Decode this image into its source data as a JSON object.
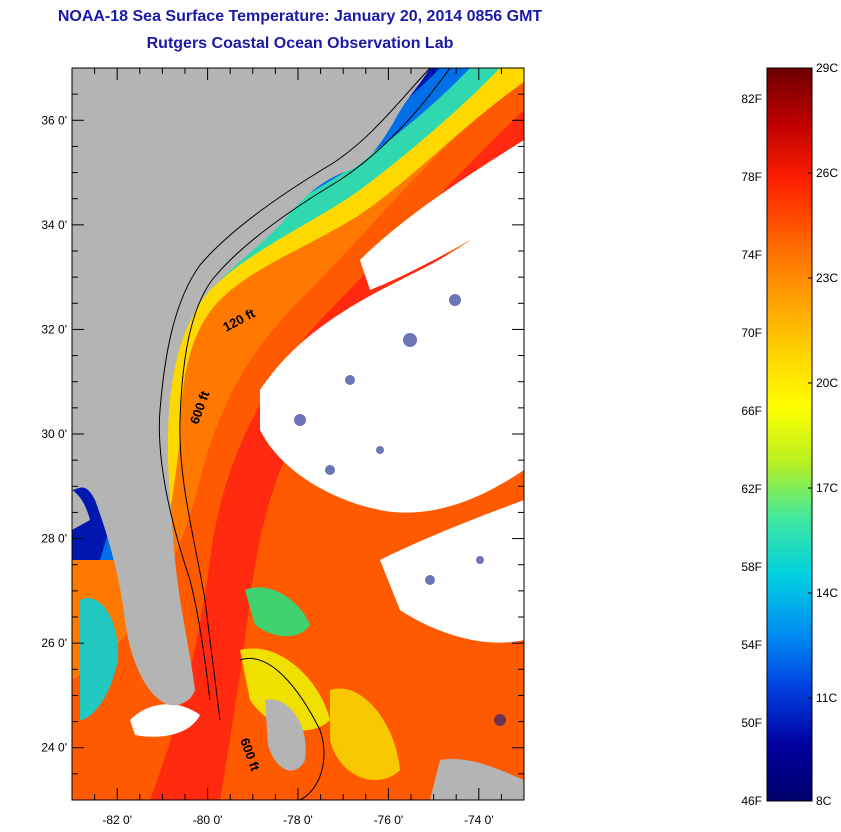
{
  "title": {
    "line1": "NOAA-18 Sea Surface Temperature:  January 20, 2014 0856 GMT",
    "line2": "Rutgers Coastal Ocean Observation Lab"
  },
  "map": {
    "lat_labels": [
      "36 0'",
      "34 0'",
      "32 0'",
      "30 0'",
      "28 0'",
      "26 0'",
      "24 0'"
    ],
    "lat_values": [
      36,
      34,
      32,
      30,
      28,
      26,
      24
    ],
    "lon_labels": [
      "-82 0'",
      "-80 0'",
      "-78 0'",
      "-76 0'",
      "-74 0'"
    ],
    "lon_values": [
      -82,
      -80,
      -78,
      -76,
      -74
    ],
    "lat_range": [
      23,
      37
    ],
    "lon_range": [
      -83,
      -73
    ],
    "contour_labels": [
      "120 ft",
      "600 ft",
      "600 ft"
    ],
    "land_color": "#b4b4b4",
    "cloud_color": "#ffffff"
  },
  "colorbar": {
    "fahrenheit_labels": [
      "82F",
      "78F",
      "74F",
      "70F",
      "66F",
      "62F",
      "58F",
      "54F",
      "50F",
      "46F"
    ],
    "celsius_labels": [
      "29C",
      "26C",
      "23C",
      "20C",
      "17C",
      "14C",
      "11C",
      "8C"
    ],
    "colors_top_to_bottom": [
      "#6e0000",
      "#c00000",
      "#ff2000",
      "#ff6000",
      "#ff9a00",
      "#ffd000",
      "#ffff00",
      "#b8f020",
      "#40e8a0",
      "#00d0e0",
      "#0090f0",
      "#0040e0",
      "#0000a0",
      "#00006a"
    ]
  }
}
